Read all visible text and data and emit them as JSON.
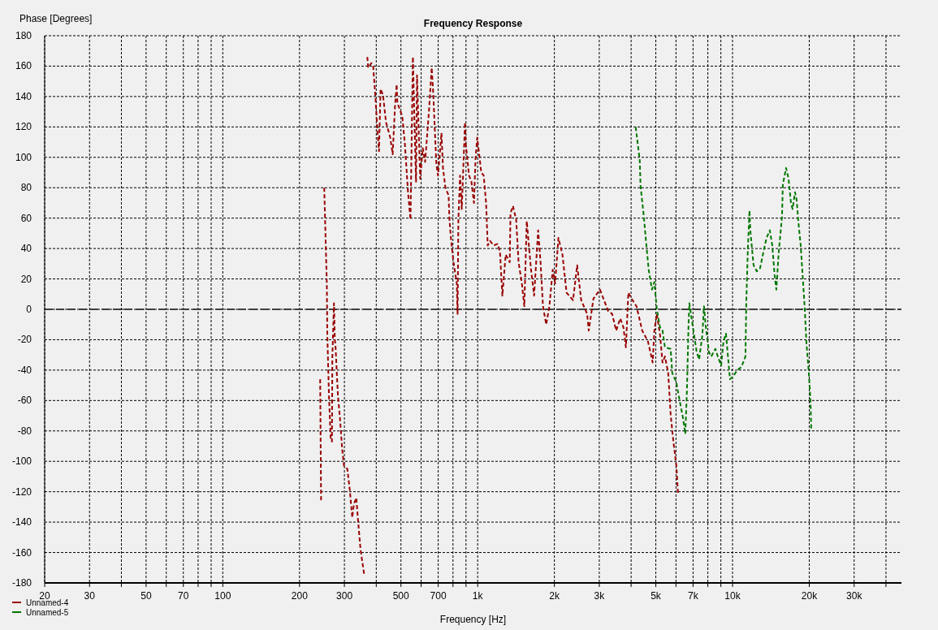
{
  "chart_data": {
    "type": "line",
    "title": "Frequency Response",
    "xlabel": "Frequency [Hz]",
    "ylabel": "Phase [Degrees]",
    "log": "x",
    "xlim": [
      20,
      46000
    ],
    "ylim": [
      -180,
      180
    ],
    "xticks": [
      20,
      30,
      {
        "value": 40,
        "label": null
      },
      50,
      {
        "value": 60,
        "label": null
      },
      70,
      {
        "value": 80,
        "label": null
      },
      {
        "value": 90,
        "label": null
      },
      100,
      200,
      300,
      {
        "value": 400,
        "label": null
      },
      500,
      {
        "value": 600,
        "label": null
      },
      700,
      {
        "value": 800,
        "label": null
      },
      {
        "value": 900,
        "label": null
      },
      {
        "value": 1000,
        "label": "1k"
      },
      {
        "value": 2000,
        "label": "2k"
      },
      {
        "value": 3000,
        "label": "3k"
      },
      {
        "value": 4000,
        "label": null
      },
      {
        "value": 5000,
        "label": "5k"
      },
      {
        "value": 6000,
        "label": null
      },
      {
        "value": 7000,
        "label": "7k"
      },
      {
        "value": 8000,
        "label": null
      },
      {
        "value": 9000,
        "label": null
      },
      {
        "value": 10000,
        "label": "10k"
      },
      {
        "value": 20000,
        "label": "20k"
      },
      {
        "value": 30000,
        "label": "30k"
      },
      {
        "value": 40000,
        "label": null
      }
    ],
    "yticks": [
      -180,
      -160,
      -140,
      -120,
      -100,
      -80,
      -60,
      -40,
      -20,
      0,
      20,
      40,
      60,
      80,
      100,
      120,
      140,
      160,
      180
    ],
    "grid": true,
    "legend": "bottom left",
    "line_style": "dashed",
    "marker": "none",
    "ref_lines": [
      {
        "axis": "y",
        "value": 0,
        "color": "#404040",
        "line_style": "dashed"
      }
    ],
    "series": [
      {
        "name": "Unnamed-4",
        "color": "#990000",
        "x": [
          241,
          243,
          245,
          250,
          256,
          257,
          261,
          265,
          268,
          269,
          273,
          275,
          277,
          283,
          288,
          294,
          299,
          308,
          315,
          322,
          327,
          334,
          339,
          347,
          359,
          365,
          369,
          372,
          383,
          389,
          398,
          404,
          410,
          416,
          425,
          437,
          454,
          464,
          474,
          481,
          484,
          506,
          518,
          533,
          545,
          557,
          565,
          573,
          578,
          595,
          609,
          622,
          645,
          660,
          670,
          679,
          689,
          699,
          721,
          731,
          747,
          769,
          775,
          787,
          804,
          828,
          834,
          840,
          853,
          866,
          892,
          898,
          925,
          945,
          967,
          981,
          996,
          1033,
          1056,
          1079,
          1095,
          1119,
          1153,
          1196,
          1223,
          1250,
          1288,
          1336,
          1345,
          1375,
          1416,
          1447,
          1491,
          1524,
          1558,
          1617,
          1665,
          1727,
          1765,
          1804,
          1857,
          1912,
          1970,
          2013,
          2074,
          2151,
          2232,
          2367,
          2457,
          2548,
          2688,
          2728,
          2846,
          3018,
          3248,
          3369,
          3495,
          3626,
          3733,
          3816,
          3901,
          4018,
          4199,
          4421,
          4655,
          4861,
          4935,
          5045,
          5197,
          5312,
          5430,
          5593,
          5716,
          5843,
          6020,
          6109
        ],
        "values": [
          -46,
          -126,
          null,
          80,
          16,
          -16,
          -57,
          -85,
          -87,
          -32,
          4,
          -19,
          -25,
          -57,
          -71,
          -92,
          -103,
          -105,
          -119,
          -137,
          -128,
          -124,
          -138,
          -158,
          -175,
          null,
          166,
          159,
          162,
          160,
          137,
          118,
          104,
          145,
          141,
          123,
          113,
          102,
          134,
          148,
          136,
          127,
          109,
          77,
          59,
          166,
          123,
          84,
          154,
          86,
          106,
          97,
          132,
          159,
          141,
          118,
          95,
          88,
          116,
          93,
          80,
          75,
          59,
          45,
          31,
          17,
          -3,
          59,
          88,
          66,
          123,
          109,
          88,
          84,
          70,
          99,
          113,
          90,
          88,
          70,
          42,
          45,
          42,
          43,
          38,
          9,
          36,
          31,
          63,
          68,
          59,
          31,
          17,
          2,
          58,
          27,
          9,
          52,
          31,
          2,
          -10,
          2,
          26,
          17,
          47,
          36,
          11,
          6,
          29,
          6,
          -3,
          -14,
          7,
          13,
          -1,
          -3,
          -14,
          -6,
          -12,
          -25,
          11,
          7,
          2,
          -14,
          -21,
          -35,
          -14,
          -3,
          -17,
          -35,
          -31,
          -42,
          -69,
          -85,
          -103,
          -121
        ]
      },
      {
        "name": "Unnamed-5",
        "color": "#007700",
        "x": [
          4169,
          4324,
          4356,
          4487,
          4586,
          4688,
          4828,
          4935,
          5045,
          5197,
          5312,
          5430,
          5716,
          5801,
          6020,
          6152,
          6383,
          6525,
          6622,
          6720,
          6770,
          7022,
          7231,
          7393,
          7614,
          7725,
          7839,
          8074,
          8253,
          8563,
          8754,
          9020,
          9216,
          9423,
          9560,
          9773,
          10060,
          10440,
          10834,
          11237,
          11320,
          11486,
          11656,
          11741,
          12092,
          12453,
          12823,
          13305,
          13600,
          14005,
          14318,
          14634,
          14853,
          15184,
          15637,
          15753,
          16219,
          16584,
          16954,
          17202,
          17585,
          17848,
          18113,
          18513,
          18926,
          19209,
          19493,
          19926,
          20221,
          20370
        ],
        "values": [
          120,
          98,
          81,
          61,
          43,
          26,
          13,
          18,
          0,
          -12,
          -14,
          -25,
          -26,
          -42,
          -48,
          -57,
          -71,
          -82,
          -54,
          -10,
          4,
          -14,
          -28,
          -33,
          -17,
          2,
          -10,
          -28,
          -31,
          -26,
          -31,
          -37,
          -21,
          -16,
          -28,
          -46,
          -44,
          -40,
          -38,
          -31,
          4,
          40,
          65,
          52,
          29,
          25,
          27,
          40,
          47,
          52,
          42,
          22,
          13,
          38,
          61,
          82,
          93,
          86,
          70,
          66,
          77,
          72,
          58,
          42,
          17,
          0,
          -22,
          -42,
          -60,
          -80
        ]
      }
    ]
  }
}
